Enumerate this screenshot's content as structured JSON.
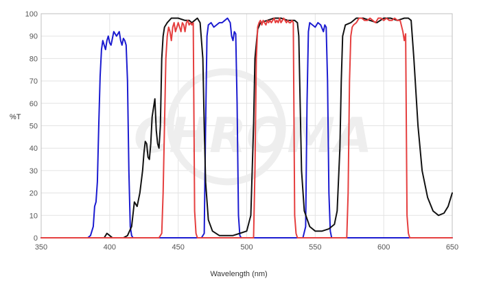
{
  "chart_data": {
    "type": "line",
    "title": "",
    "xlabel": "Wavelength (nm)",
    "ylabel": "%T",
    "xlim": [
      350,
      650
    ],
    "ylim": [
      0,
      100
    ],
    "x_ticks": [
      350,
      400,
      450,
      500,
      550,
      600,
      650
    ],
    "y_ticks": [
      0,
      10,
      20,
      30,
      40,
      50,
      60,
      70,
      80,
      90,
      100
    ],
    "grid": true,
    "legend": "none",
    "watermark": "CHROMA",
    "colors": {
      "blue": "#1a1ad0",
      "black": "#111111",
      "red": "#e53e3e"
    },
    "series": [
      {
        "color": "blue",
        "points": [
          [
            350,
            0
          ],
          [
            384,
            0
          ],
          [
            386,
            1
          ],
          [
            388,
            5
          ],
          [
            389,
            14
          ],
          [
            390,
            16
          ],
          [
            391,
            25
          ],
          [
            392,
            50
          ],
          [
            393,
            72
          ],
          [
            394,
            84
          ],
          [
            395,
            88
          ],
          [
            396,
            86
          ],
          [
            397,
            84
          ],
          [
            398,
            88
          ],
          [
            399,
            90
          ],
          [
            400,
            87
          ],
          [
            401,
            86
          ],
          [
            402,
            89
          ],
          [
            403,
            92
          ],
          [
            404,
            91
          ],
          [
            405,
            90
          ],
          [
            406,
            91
          ],
          [
            407,
            92
          ],
          [
            408,
            88
          ],
          [
            409,
            86
          ],
          [
            410,
            89
          ],
          [
            411,
            88
          ],
          [
            412,
            86
          ],
          [
            413,
            70
          ],
          [
            414,
            30
          ],
          [
            415,
            5
          ],
          [
            416,
            1
          ],
          [
            417,
            0
          ],
          [
            467,
            0
          ],
          [
            469,
            2
          ],
          [
            470,
            50
          ],
          [
            471,
            90
          ],
          [
            472,
            95
          ],
          [
            474,
            96
          ],
          [
            476,
            94
          ],
          [
            478,
            95
          ],
          [
            480,
            96
          ],
          [
            482,
            96
          ],
          [
            484,
            97
          ],
          [
            486,
            98
          ],
          [
            488,
            96
          ],
          [
            489,
            90
          ],
          [
            490,
            88
          ],
          [
            491,
            92
          ],
          [
            492,
            91
          ],
          [
            493,
            60
          ],
          [
            494,
            10
          ],
          [
            495,
            1
          ],
          [
            496,
            0
          ],
          [
            541,
            0
          ],
          [
            543,
            5
          ],
          [
            544,
            60
          ],
          [
            545,
            92
          ],
          [
            546,
            96
          ],
          [
            548,
            95
          ],
          [
            550,
            94
          ],
          [
            552,
            96
          ],
          [
            554,
            95
          ],
          [
            556,
            92
          ],
          [
            557,
            95
          ],
          [
            558,
            94
          ],
          [
            559,
            70
          ],
          [
            560,
            20
          ],
          [
            561,
            3
          ],
          [
            562,
            0
          ],
          [
            650,
            0
          ]
        ]
      },
      {
        "color": "black",
        "points": [
          [
            350,
            0
          ],
          [
            396,
            0
          ],
          [
            398,
            2
          ],
          [
            400,
            1
          ],
          [
            402,
            0
          ],
          [
            406,
            0
          ],
          [
            410,
            0
          ],
          [
            413,
            1
          ],
          [
            416,
            5
          ],
          [
            418,
            16
          ],
          [
            420,
            14
          ],
          [
            422,
            20
          ],
          [
            424,
            30
          ],
          [
            425,
            38
          ],
          [
            426,
            43
          ],
          [
            427,
            42
          ],
          [
            428,
            36
          ],
          [
            429,
            35
          ],
          [
            430,
            42
          ],
          [
            431,
            54
          ],
          [
            432,
            58
          ],
          [
            433,
            62
          ],
          [
            434,
            48
          ],
          [
            435,
            42
          ],
          [
            436,
            40
          ],
          [
            437,
            50
          ],
          [
            438,
            80
          ],
          [
            439,
            90
          ],
          [
            440,
            94
          ],
          [
            442,
            96
          ],
          [
            445,
            98
          ],
          [
            450,
            98
          ],
          [
            455,
            97
          ],
          [
            458,
            97
          ],
          [
            460,
            96
          ],
          [
            462,
            97
          ],
          [
            464,
            98
          ],
          [
            466,
            96
          ],
          [
            468,
            80
          ],
          [
            469,
            50
          ],
          [
            470,
            25
          ],
          [
            472,
            8
          ],
          [
            475,
            3
          ],
          [
            480,
            1
          ],
          [
            485,
            1
          ],
          [
            490,
            1
          ],
          [
            495,
            2
          ],
          [
            500,
            3
          ],
          [
            503,
            10
          ],
          [
            505,
            50
          ],
          [
            506,
            80
          ],
          [
            508,
            93
          ],
          [
            510,
            96
          ],
          [
            515,
            97
          ],
          [
            520,
            98
          ],
          [
            525,
            98
          ],
          [
            530,
            97
          ],
          [
            535,
            97
          ],
          [
            537,
            96
          ],
          [
            538,
            90
          ],
          [
            539,
            60
          ],
          [
            540,
            30
          ],
          [
            542,
            12
          ],
          [
            546,
            5
          ],
          [
            550,
            3
          ],
          [
            555,
            3
          ],
          [
            560,
            4
          ],
          [
            564,
            6
          ],
          [
            566,
            12
          ],
          [
            568,
            40
          ],
          [
            569,
            70
          ],
          [
            570,
            90
          ],
          [
            572,
            95
          ],
          [
            576,
            96
          ],
          [
            580,
            98
          ],
          [
            585,
            98
          ],
          [
            590,
            97
          ],
          [
            595,
            96
          ],
          [
            600,
            98
          ],
          [
            605,
            98
          ],
          [
            610,
            97
          ],
          [
            615,
            98
          ],
          [
            618,
            98
          ],
          [
            620,
            97
          ],
          [
            622,
            80
          ],
          [
            625,
            50
          ],
          [
            628,
            30
          ],
          [
            632,
            18
          ],
          [
            636,
            12
          ],
          [
            640,
            10
          ],
          [
            644,
            11
          ],
          [
            647,
            14
          ],
          [
            650,
            20
          ]
        ]
      },
      {
        "color": "red",
        "points": [
          [
            350,
            0
          ],
          [
            436,
            0
          ],
          [
            438,
            2
          ],
          [
            439,
            20
          ],
          [
            440,
            50
          ],
          [
            441,
            80
          ],
          [
            442,
            90
          ],
          [
            443,
            94
          ],
          [
            444,
            92
          ],
          [
            445,
            88
          ],
          [
            446,
            94
          ],
          [
            447,
            96
          ],
          [
            448,
            92
          ],
          [
            449,
            94
          ],
          [
            450,
            96
          ],
          [
            451,
            94
          ],
          [
            452,
            92
          ],
          [
            453,
            96
          ],
          [
            454,
            95
          ],
          [
            455,
            92
          ],
          [
            456,
            96
          ],
          [
            457,
            97
          ],
          [
            458,
            95
          ],
          [
            459,
            96
          ],
          [
            460,
            95
          ],
          [
            461,
            96
          ],
          [
            462,
            12
          ],
          [
            463,
            2
          ],
          [
            464,
            0
          ],
          [
            505,
            0
          ],
          [
            506,
            30
          ],
          [
            507,
            80
          ],
          [
            508,
            94
          ],
          [
            509,
            96
          ],
          [
            510,
            97
          ],
          [
            511,
            95
          ],
          [
            512,
            97
          ],
          [
            513,
            96
          ],
          [
            514,
            95
          ],
          [
            515,
            97
          ],
          [
            516,
            96
          ],
          [
            517,
            97
          ],
          [
            518,
            96
          ],
          [
            519,
            97
          ],
          [
            520,
            98
          ],
          [
            521,
            96
          ],
          [
            522,
            97
          ],
          [
            523,
            96
          ],
          [
            524,
            98
          ],
          [
            525,
            96
          ],
          [
            526,
            97
          ],
          [
            527,
            98
          ],
          [
            528,
            97
          ],
          [
            529,
            96
          ],
          [
            530,
            97
          ],
          [
            531,
            96
          ],
          [
            532,
            96
          ],
          [
            533,
            97
          ],
          [
            534,
            96
          ],
          [
            535,
            10
          ],
          [
            536,
            2
          ],
          [
            537,
            0
          ],
          [
            573,
            0
          ],
          [
            574,
            20
          ],
          [
            575,
            70
          ],
          [
            576,
            90
          ],
          [
            577,
            94
          ],
          [
            578,
            95
          ],
          [
            580,
            96
          ],
          [
            582,
            98
          ],
          [
            584,
            98
          ],
          [
            586,
            97
          ],
          [
            588,
            97
          ],
          [
            590,
            98
          ],
          [
            592,
            97
          ],
          [
            594,
            96
          ],
          [
            596,
            98
          ],
          [
            598,
            98
          ],
          [
            600,
            97
          ],
          [
            602,
            98
          ],
          [
            604,
            97
          ],
          [
            606,
            97
          ],
          [
            608,
            98
          ],
          [
            610,
            97
          ],
          [
            612,
            97
          ],
          [
            614,
            92
          ],
          [
            615,
            88
          ],
          [
            616,
            91
          ],
          [
            617,
            10
          ],
          [
            618,
            2
          ],
          [
            619,
            0
          ],
          [
            650,
            0
          ]
        ]
      }
    ]
  }
}
